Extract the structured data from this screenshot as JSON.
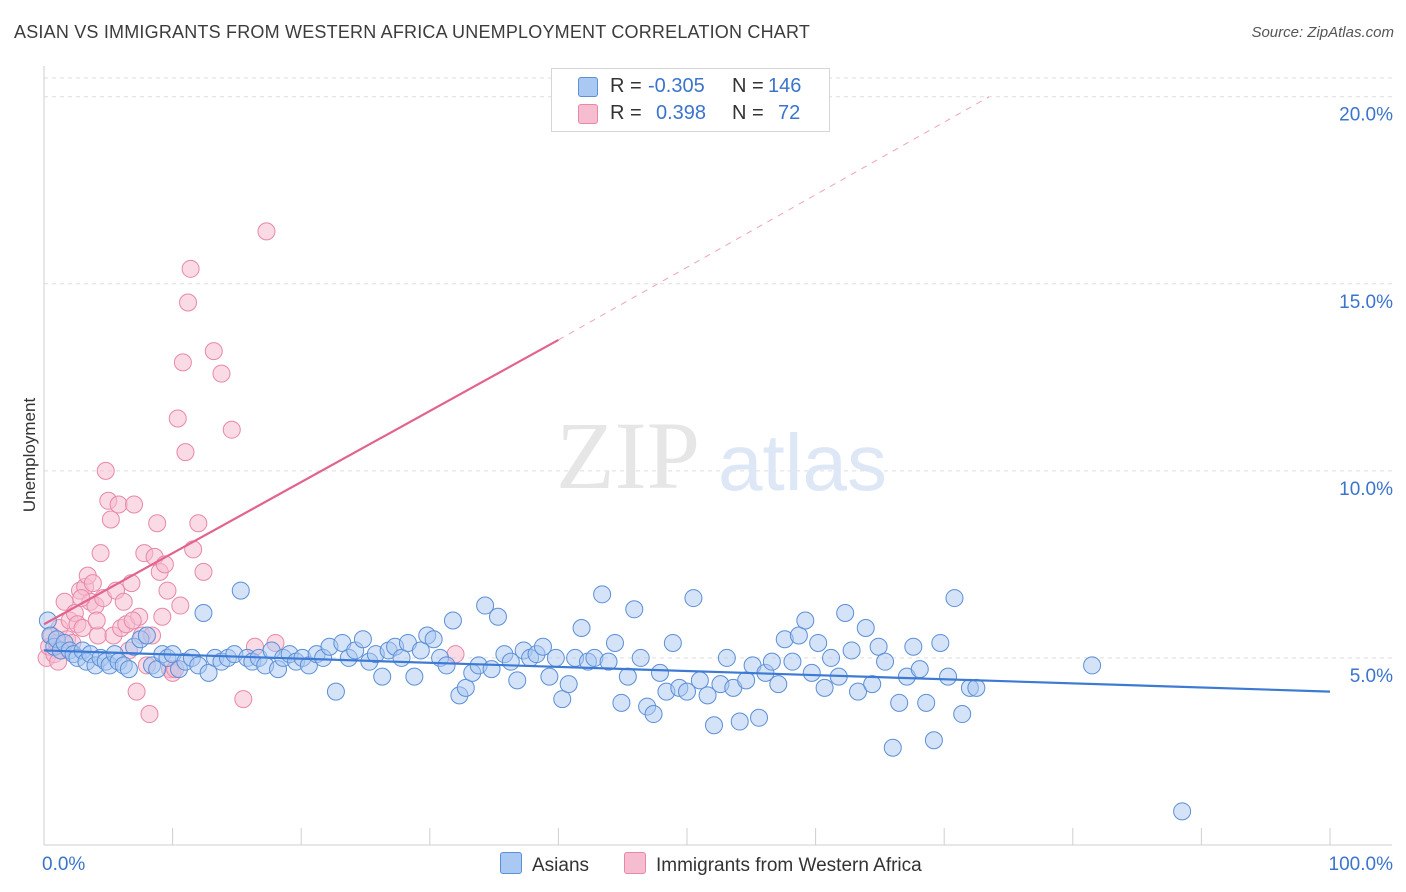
{
  "title": "ASIAN VS IMMIGRANTS FROM WESTERN AFRICA UNEMPLOYMENT CORRELATION CHART",
  "source": "Source: ZipAtlas.com",
  "watermark": {
    "zip": "ZIP",
    "atlas": "atlas"
  },
  "legend_top": [
    {
      "r_label": "R =",
      "r_value": "-0.305",
      "n_label": "N =",
      "n_value": "146"
    },
    {
      "r_label": "R =",
      "r_value": "0.398",
      "n_label": "N =",
      "n_value": "72"
    }
  ],
  "legend_bottom": [
    "Asians",
    "Immigrants from Western Africa"
  ],
  "colors": {
    "blue_fill": "#a9c8f2",
    "blue_stroke": "#5b8fd6",
    "blue_line": "#3c7ad4",
    "pink_fill": "#f6bccf",
    "pink_stroke": "#e888a8",
    "pink_line": "#e2648e",
    "tick_label": "#3b74cc",
    "grid": "#dddddd"
  },
  "chart_data": {
    "type": "scatter",
    "title": "ASIAN VS IMMIGRANTS FROM WESTERN AFRICA UNEMPLOYMENT CORRELATION CHART",
    "xlabel": "",
    "ylabel": "Unemployment",
    "xlim": [
      0,
      100
    ],
    "ylim": [
      0,
      20.5
    ],
    "x_tick_labels": [
      "0.0%",
      "100.0%"
    ],
    "y_ticks": [
      5,
      10,
      15,
      20
    ],
    "y_tick_labels": [
      "5.0%",
      "10.0%",
      "15.0%",
      "20.0%"
    ],
    "grid": true,
    "series": [
      {
        "name": "Asians",
        "R": -0.305,
        "N": 146,
        "trend": {
          "x0": 0,
          "y0": 5.2,
          "x1": 100,
          "y1": 4.1
        },
        "points": [
          [
            0.3,
            6.0
          ],
          [
            0.5,
            5.6
          ],
          [
            0.8,
            5.3
          ],
          [
            1.0,
            5.5
          ],
          [
            1.3,
            5.2
          ],
          [
            1.6,
            5.4
          ],
          [
            2.0,
            5.2
          ],
          [
            2.3,
            5.1
          ],
          [
            2.6,
            5.0
          ],
          [
            3.0,
            5.2
          ],
          [
            3.3,
            4.9
          ],
          [
            3.6,
            5.1
          ],
          [
            4.0,
            4.8
          ],
          [
            4.4,
            5.0
          ],
          [
            4.8,
            4.9
          ],
          [
            5.1,
            4.8
          ],
          [
            5.5,
            5.1
          ],
          [
            5.8,
            4.9
          ],
          [
            6.2,
            4.8
          ],
          [
            6.6,
            4.7
          ],
          [
            7.0,
            5.3
          ],
          [
            7.5,
            5.5
          ],
          [
            8.0,
            5.6
          ],
          [
            8.4,
            4.8
          ],
          [
            8.8,
            4.7
          ],
          [
            9.2,
            5.1
          ],
          [
            9.6,
            5.0
          ],
          [
            10.0,
            5.1
          ],
          [
            10.5,
            4.7
          ],
          [
            11.0,
            4.9
          ],
          [
            11.5,
            5.0
          ],
          [
            12.0,
            4.8
          ],
          [
            12.4,
            6.2
          ],
          [
            12.8,
            4.6
          ],
          [
            13.3,
            5.0
          ],
          [
            13.8,
            4.9
          ],
          [
            14.3,
            5.0
          ],
          [
            14.8,
            5.1
          ],
          [
            15.3,
            6.8
          ],
          [
            15.8,
            5.0
          ],
          [
            16.2,
            4.9
          ],
          [
            16.7,
            5.0
          ],
          [
            17.2,
            4.8
          ],
          [
            17.7,
            5.2
          ],
          [
            18.2,
            4.7
          ],
          [
            18.6,
            5.0
          ],
          [
            19.1,
            5.1
          ],
          [
            19.6,
            4.9
          ],
          [
            20.1,
            5.0
          ],
          [
            20.6,
            4.8
          ],
          [
            21.2,
            5.1
          ],
          [
            21.7,
            5.0
          ],
          [
            22.2,
            5.3
          ],
          [
            22.7,
            4.1
          ],
          [
            23.2,
            5.4
          ],
          [
            23.7,
            5.0
          ],
          [
            24.2,
            5.2
          ],
          [
            24.8,
            5.5
          ],
          [
            25.3,
            4.9
          ],
          [
            25.8,
            5.1
          ],
          [
            26.3,
            4.5
          ],
          [
            26.8,
            5.2
          ],
          [
            27.3,
            5.3
          ],
          [
            27.8,
            5.0
          ],
          [
            28.3,
            5.4
          ],
          [
            28.8,
            4.5
          ],
          [
            29.3,
            5.2
          ],
          [
            29.8,
            5.6
          ],
          [
            30.3,
            5.5
          ],
          [
            30.8,
            5.0
          ],
          [
            31.3,
            4.8
          ],
          [
            31.8,
            6.0
          ],
          [
            32.3,
            4.0
          ],
          [
            32.8,
            4.2
          ],
          [
            33.3,
            4.6
          ],
          [
            33.8,
            4.8
          ],
          [
            34.3,
            6.4
          ],
          [
            34.8,
            4.7
          ],
          [
            35.3,
            6.1
          ],
          [
            35.8,
            5.1
          ],
          [
            36.3,
            4.9
          ],
          [
            36.8,
            4.4
          ],
          [
            37.3,
            5.2
          ],
          [
            37.8,
            5.0
          ],
          [
            38.3,
            5.1
          ],
          [
            38.8,
            5.3
          ],
          [
            39.3,
            4.5
          ],
          [
            39.8,
            5.0
          ],
          [
            40.3,
            3.9
          ],
          [
            40.8,
            4.3
          ],
          [
            41.3,
            5.0
          ],
          [
            41.8,
            5.8
          ],
          [
            42.3,
            4.9
          ],
          [
            42.8,
            5.0
          ],
          [
            43.4,
            6.7
          ],
          [
            43.9,
            4.9
          ],
          [
            44.4,
            5.4
          ],
          [
            44.9,
            3.8
          ],
          [
            45.4,
            4.5
          ],
          [
            45.9,
            6.3
          ],
          [
            46.4,
            5.0
          ],
          [
            46.9,
            3.7
          ],
          [
            47.4,
            3.5
          ],
          [
            47.9,
            4.6
          ],
          [
            48.4,
            4.1
          ],
          [
            48.9,
            5.4
          ],
          [
            49.4,
            4.2
          ],
          [
            50.0,
            4.1
          ],
          [
            50.5,
            6.6
          ],
          [
            51.0,
            4.4
          ],
          [
            51.6,
            4.0
          ],
          [
            52.1,
            3.2
          ],
          [
            52.6,
            4.3
          ],
          [
            53.1,
            5.0
          ],
          [
            53.6,
            4.2
          ],
          [
            54.1,
            3.3
          ],
          [
            54.6,
            4.4
          ],
          [
            55.1,
            4.8
          ],
          [
            55.6,
            3.4
          ],
          [
            56.1,
            4.6
          ],
          [
            56.6,
            4.9
          ],
          [
            57.1,
            4.3
          ],
          [
            57.6,
            5.5
          ],
          [
            58.2,
            4.9
          ],
          [
            58.7,
            5.6
          ],
          [
            59.2,
            6.0
          ],
          [
            59.7,
            4.6
          ],
          [
            60.2,
            5.4
          ],
          [
            60.7,
            4.2
          ],
          [
            61.2,
            5.0
          ],
          [
            61.8,
            4.5
          ],
          [
            62.3,
            6.2
          ],
          [
            62.8,
            5.2
          ],
          [
            63.3,
            4.1
          ],
          [
            63.9,
            5.8
          ],
          [
            64.4,
            4.3
          ],
          [
            64.9,
            5.3
          ],
          [
            65.4,
            4.9
          ],
          [
            66.0,
            2.6
          ],
          [
            66.5,
            3.8
          ],
          [
            67.1,
            4.5
          ],
          [
            67.6,
            5.3
          ],
          [
            68.1,
            4.7
          ],
          [
            68.6,
            3.8
          ],
          [
            69.2,
            2.8
          ],
          [
            69.7,
            5.4
          ],
          [
            70.3,
            4.5
          ],
          [
            70.8,
            6.6
          ],
          [
            71.4,
            3.5
          ],
          [
            72.0,
            4.2
          ],
          [
            72.5,
            4.2
          ],
          [
            81.5,
            4.8
          ],
          [
            88.5,
            0.9
          ]
        ]
      },
      {
        "name": "Immigrants from Western Africa",
        "R": 0.398,
        "N": 72,
        "trend": {
          "x0": 0,
          "y0": 5.9,
          "x1": 40,
          "y1": 13.5,
          "dashed_to_x": 73.5,
          "dashed_to_y": 20.0
        },
        "points": [
          [
            0.2,
            5.0
          ],
          [
            0.4,
            5.3
          ],
          [
            0.6,
            5.6
          ],
          [
            0.8,
            5.1
          ],
          [
            1.0,
            5.4
          ],
          [
            1.2,
            5.8
          ],
          [
            1.4,
            5.2
          ],
          [
            1.6,
            6.5
          ],
          [
            1.8,
            5.5
          ],
          [
            2.0,
            6.0
          ],
          [
            2.2,
            5.4
          ],
          [
            2.4,
            6.2
          ],
          [
            2.6,
            5.9
          ],
          [
            2.8,
            6.8
          ],
          [
            3.0,
            5.8
          ],
          [
            3.2,
            6.9
          ],
          [
            3.4,
            7.2
          ],
          [
            3.6,
            6.5
          ],
          [
            3.8,
            7.0
          ],
          [
            4.0,
            6.4
          ],
          [
            4.2,
            5.6
          ],
          [
            4.4,
            7.8
          ],
          [
            4.6,
            6.6
          ],
          [
            4.8,
            10.0
          ],
          [
            5.0,
            9.2
          ],
          [
            5.2,
            8.7
          ],
          [
            5.4,
            5.6
          ],
          [
            5.6,
            6.8
          ],
          [
            5.8,
            9.1
          ],
          [
            6.0,
            5.8
          ],
          [
            6.2,
            6.5
          ],
          [
            6.4,
            5.9
          ],
          [
            6.6,
            5.2
          ],
          [
            6.8,
            7.0
          ],
          [
            7.0,
            9.1
          ],
          [
            7.2,
            4.1
          ],
          [
            7.4,
            6.1
          ],
          [
            7.6,
            5.6
          ],
          [
            7.8,
            7.8
          ],
          [
            8.0,
            4.8
          ],
          [
            8.2,
            3.5
          ],
          [
            8.4,
            5.6
          ],
          [
            8.6,
            7.7
          ],
          [
            8.8,
            8.6
          ],
          [
            9.0,
            7.3
          ],
          [
            9.2,
            6.1
          ],
          [
            9.4,
            7.5
          ],
          [
            9.6,
            6.8
          ],
          [
            9.8,
            4.7
          ],
          [
            10.0,
            4.6
          ],
          [
            10.2,
            4.7
          ],
          [
            10.4,
            11.4
          ],
          [
            10.6,
            6.4
          ],
          [
            10.8,
            12.9
          ],
          [
            11.0,
            10.5
          ],
          [
            11.2,
            14.5
          ],
          [
            11.4,
            15.4
          ],
          [
            11.6,
            7.9
          ],
          [
            12.0,
            8.6
          ],
          [
            12.4,
            7.3
          ],
          [
            13.2,
            13.2
          ],
          [
            13.8,
            12.6
          ],
          [
            14.6,
            11.1
          ],
          [
            15.5,
            3.9
          ],
          [
            16.4,
            5.3
          ],
          [
            17.3,
            16.4
          ],
          [
            18.0,
            5.4
          ],
          [
            32.0,
            5.1
          ],
          [
            1.1,
            4.9
          ],
          [
            2.9,
            6.6
          ],
          [
            4.1,
            6.0
          ],
          [
            6.9,
            6.0
          ]
        ]
      }
    ]
  }
}
